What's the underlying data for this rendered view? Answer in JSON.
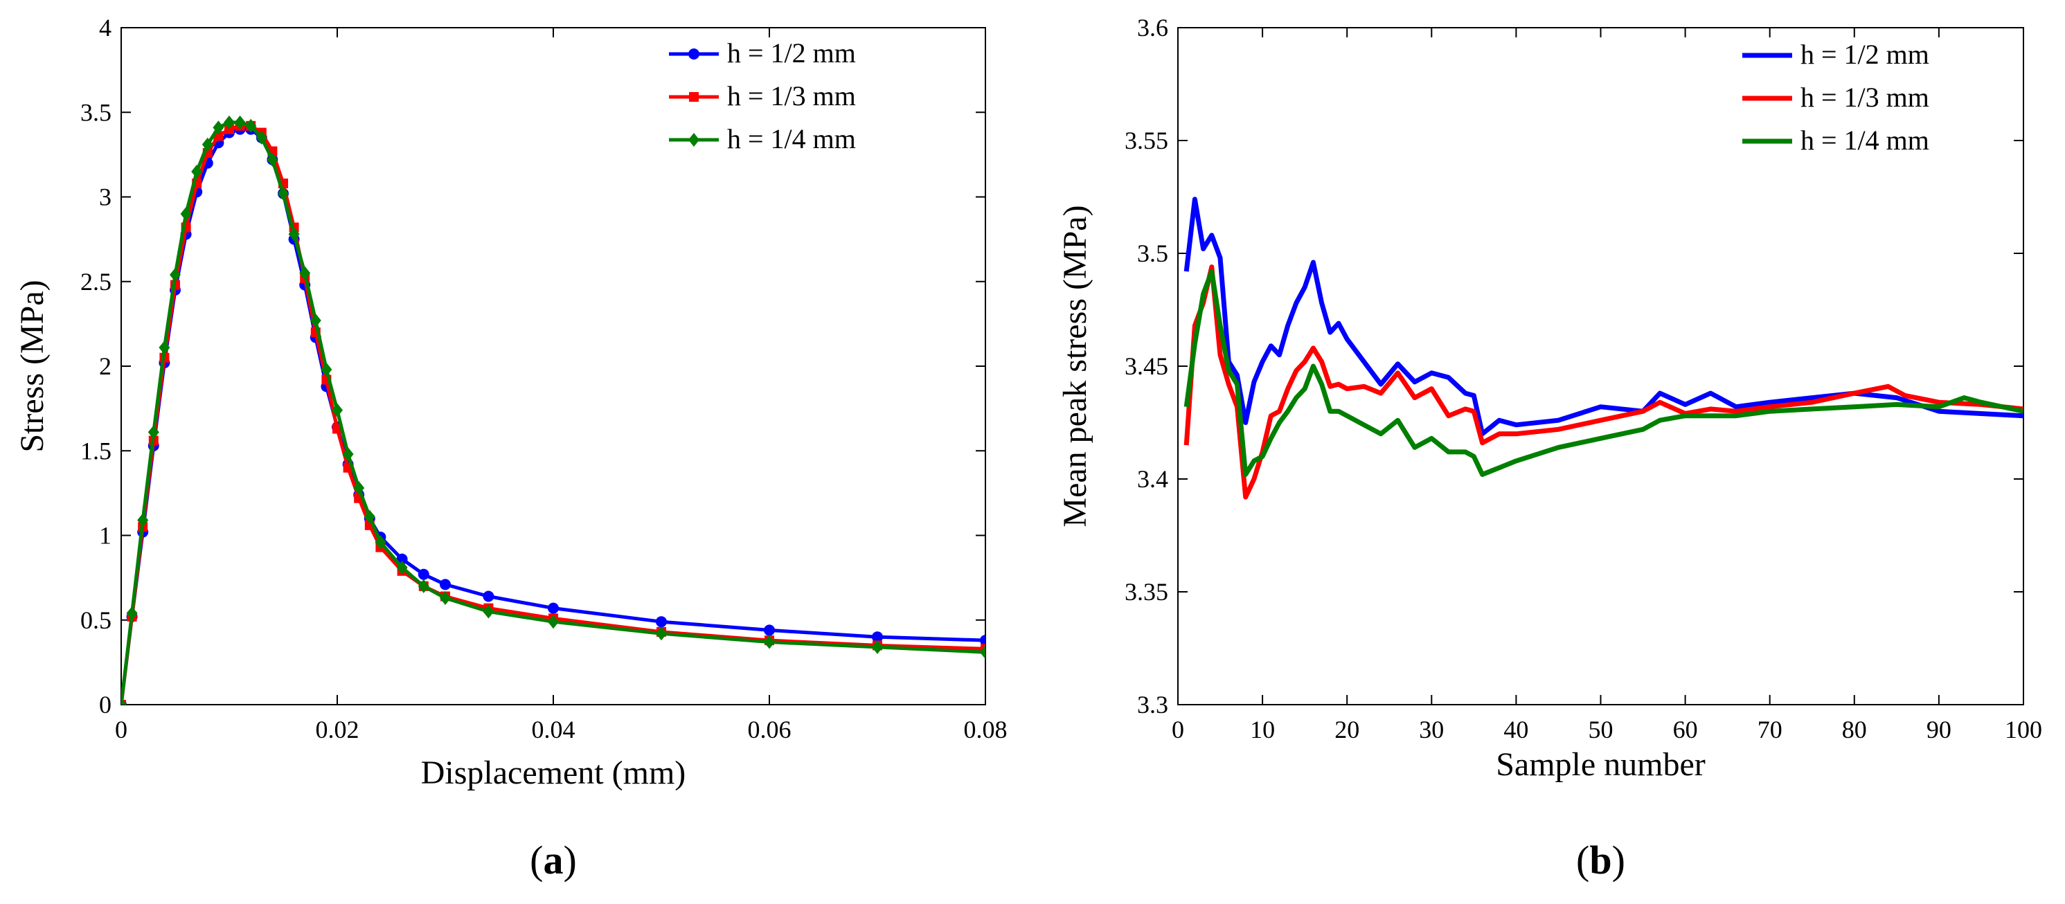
{
  "chart_data": [
    {
      "type": "line",
      "panel_label": "a",
      "xlabel": "Displacement (mm)",
      "ylabel": "Stress (MPa)",
      "xlim": [
        0,
        0.08
      ],
      "ylim": [
        0,
        4
      ],
      "xticks": [
        "0",
        "0.02",
        "0.04",
        "0.06",
        "0.08"
      ],
      "yticks": [
        "0",
        "0.5",
        "1",
        "1.5",
        "2",
        "2.5",
        "3",
        "3.5",
        "4"
      ],
      "legend_position": "top-right",
      "series": [
        {
          "name": "h = 1/2 mm",
          "color": "#0000ff",
          "marker": "circle",
          "x": [
            0,
            0.001,
            0.002,
            0.003,
            0.004,
            0.005,
            0.006,
            0.007,
            0.008,
            0.009,
            0.01,
            0.011,
            0.012,
            0.013,
            0.014,
            0.015,
            0.016,
            0.017,
            0.018,
            0.019,
            0.02,
            0.021,
            0.022,
            0.023,
            0.024,
            0.026,
            0.028,
            0.03,
            0.034,
            0.04,
            0.05,
            0.06,
            0.07,
            0.08
          ],
          "y": [
            0,
            0.52,
            1.02,
            1.53,
            2.02,
            2.45,
            2.78,
            3.03,
            3.2,
            3.32,
            3.38,
            3.4,
            3.4,
            3.35,
            3.22,
            3.02,
            2.75,
            2.48,
            2.17,
            1.88,
            1.64,
            1.42,
            1.24,
            1.1,
            0.99,
            0.86,
            0.77,
            0.71,
            0.64,
            0.57,
            0.49,
            0.44,
            0.4,
            0.38
          ]
        },
        {
          "name": "h = 1/3 mm",
          "color": "#ff0000",
          "marker": "square",
          "x": [
            0,
            0.001,
            0.002,
            0.003,
            0.004,
            0.005,
            0.006,
            0.007,
            0.008,
            0.009,
            0.01,
            0.011,
            0.012,
            0.013,
            0.014,
            0.015,
            0.016,
            0.017,
            0.018,
            0.019,
            0.02,
            0.021,
            0.022,
            0.023,
            0.024,
            0.026,
            0.028,
            0.03,
            0.034,
            0.04,
            0.05,
            0.06,
            0.07,
            0.08
          ],
          "y": [
            0,
            0.52,
            1.05,
            1.56,
            2.05,
            2.48,
            2.82,
            3.08,
            3.26,
            3.36,
            3.4,
            3.42,
            3.42,
            3.38,
            3.27,
            3.08,
            2.82,
            2.52,
            2.2,
            1.92,
            1.63,
            1.4,
            1.22,
            1.06,
            0.93,
            0.79,
            0.7,
            0.64,
            0.57,
            0.51,
            0.43,
            0.38,
            0.35,
            0.33
          ]
        },
        {
          "name": "h = 1/4 mm",
          "color": "#007f00",
          "marker": "diamond",
          "x": [
            0,
            0.001,
            0.002,
            0.003,
            0.004,
            0.005,
            0.006,
            0.007,
            0.008,
            0.009,
            0.01,
            0.011,
            0.012,
            0.013,
            0.014,
            0.015,
            0.016,
            0.017,
            0.018,
            0.019,
            0.02,
            0.021,
            0.022,
            0.023,
            0.024,
            0.026,
            0.028,
            0.03,
            0.034,
            0.04,
            0.05,
            0.06,
            0.07,
            0.08
          ],
          "y": [
            0,
            0.54,
            1.09,
            1.61,
            2.11,
            2.54,
            2.9,
            3.15,
            3.31,
            3.41,
            3.44,
            3.44,
            3.42,
            3.35,
            3.22,
            3.02,
            2.78,
            2.55,
            2.27,
            1.98,
            1.74,
            1.48,
            1.28,
            1.11,
            0.96,
            0.81,
            0.7,
            0.63,
            0.55,
            0.49,
            0.42,
            0.37,
            0.34,
            0.31
          ]
        }
      ]
    },
    {
      "type": "line",
      "panel_label": "b",
      "xlabel": "Sample number",
      "ylabel": "Mean peak stress (MPa)",
      "xlim": [
        0,
        100
      ],
      "ylim": [
        3.3,
        3.6
      ],
      "xticks": [
        "0",
        "10",
        "20",
        "30",
        "40",
        "50",
        "60",
        "70",
        "80",
        "90",
        "100"
      ],
      "yticks": [
        "3.3",
        "3.35",
        "3.4",
        "3.45",
        "3.5",
        "3.55",
        "3.6"
      ],
      "legend_position": "top-right",
      "series": [
        {
          "name": "h = 1/2 mm",
          "color": "#0000ff",
          "x": [
            1,
            2,
            3,
            4,
            5,
            6,
            7,
            8,
            9,
            10,
            11,
            12,
            13,
            14,
            15,
            16,
            17,
            18,
            19,
            20,
            22,
            24,
            26,
            28,
            30,
            32,
            34,
            35,
            36,
            38,
            40,
            45,
            50,
            55,
            57,
            60,
            63,
            66,
            70,
            75,
            80,
            85,
            90,
            95,
            100
          ],
          "y": [
            3.492,
            3.524,
            3.502,
            3.508,
            3.498,
            3.452,
            3.446,
            3.425,
            3.443,
            3.452,
            3.459,
            3.455,
            3.468,
            3.478,
            3.485,
            3.496,
            3.478,
            3.465,
            3.469,
            3.462,
            3.452,
            3.442,
            3.451,
            3.443,
            3.447,
            3.445,
            3.438,
            3.437,
            3.42,
            3.426,
            3.424,
            3.426,
            3.432,
            3.43,
            3.438,
            3.433,
            3.438,
            3.432,
            3.434,
            3.436,
            3.438,
            3.436,
            3.43,
            3.429,
            3.428
          ]
        },
        {
          "name": "h = 1/3 mm",
          "color": "#ff0000",
          "x": [
            1,
            2,
            3,
            4,
            5,
            6,
            7,
            8,
            9,
            10,
            11,
            12,
            13,
            14,
            15,
            16,
            17,
            18,
            19,
            20,
            22,
            24,
            26,
            28,
            30,
            32,
            34,
            35,
            36,
            38,
            40,
            45,
            50,
            55,
            57,
            60,
            63,
            66,
            70,
            75,
            80,
            84,
            86,
            90,
            95,
            100
          ],
          "y": [
            3.415,
            3.468,
            3.478,
            3.494,
            3.455,
            3.442,
            3.432,
            3.392,
            3.4,
            3.412,
            3.428,
            3.43,
            3.44,
            3.448,
            3.452,
            3.458,
            3.452,
            3.441,
            3.442,
            3.44,
            3.441,
            3.438,
            3.447,
            3.436,
            3.44,
            3.428,
            3.431,
            3.43,
            3.416,
            3.42,
            3.42,
            3.422,
            3.426,
            3.43,
            3.434,
            3.429,
            3.431,
            3.43,
            3.432,
            3.434,
            3.438,
            3.441,
            3.437,
            3.434,
            3.433,
            3.431
          ]
        },
        {
          "name": "h = 1/4 mm",
          "color": "#007f00",
          "x": [
            1,
            2,
            3,
            4,
            5,
            6,
            7,
            8,
            9,
            10,
            11,
            12,
            13,
            14,
            15,
            16,
            17,
            18,
            19,
            20,
            22,
            24,
            26,
            28,
            30,
            32,
            34,
            35,
            36,
            38,
            40,
            45,
            50,
            55,
            57,
            60,
            63,
            66,
            70,
            75,
            80,
            85,
            90,
            93,
            95,
            100
          ],
          "y": [
            3.432,
            3.46,
            3.482,
            3.492,
            3.468,
            3.448,
            3.442,
            3.402,
            3.408,
            3.41,
            3.418,
            3.425,
            3.43,
            3.436,
            3.44,
            3.45,
            3.442,
            3.43,
            3.43,
            3.428,
            3.424,
            3.42,
            3.426,
            3.414,
            3.418,
            3.412,
            3.412,
            3.41,
            3.402,
            3.405,
            3.408,
            3.414,
            3.418,
            3.422,
            3.426,
            3.428,
            3.428,
            3.428,
            3.43,
            3.431,
            3.432,
            3.433,
            3.432,
            3.436,
            3.434,
            3.43
          ]
        }
      ]
    }
  ]
}
